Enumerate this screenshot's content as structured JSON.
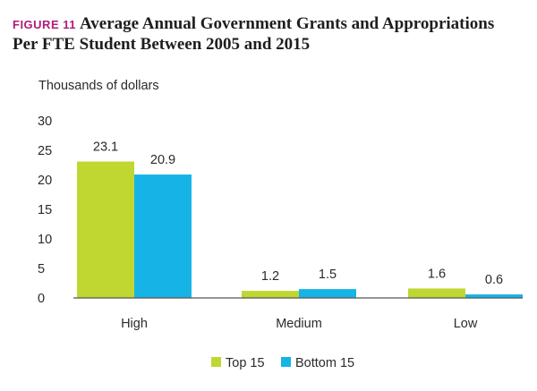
{
  "figure": {
    "label": "FIGURE 11",
    "title_line1": "Average Annual Government Grants and Appropriations",
    "title_line2": "Per FTE Student Between 2005 and 2015"
  },
  "colors": {
    "accent": "#b01c78",
    "top15": "#bfd730",
    "bottom15": "#16b4e6"
  },
  "chart_data": {
    "type": "bar",
    "title": "Average Annual Government Grants and Appropriations Per FTE Student Between 2005 and 2015",
    "ylabel": "Thousands of dollars",
    "xlabel": "",
    "categories": [
      "High",
      "Medium",
      "Low"
    ],
    "series": [
      {
        "name": "Top 15",
        "values": [
          23.1,
          1.2,
          1.6
        ],
        "labels": [
          "23.1",
          "1.2",
          "1.6"
        ]
      },
      {
        "name": "Bottom 15",
        "values": [
          20.9,
          1.5,
          0.6
        ],
        "labels": [
          "20.9",
          "1.5",
          "0.6"
        ]
      }
    ],
    "ylim": [
      0,
      30
    ],
    "yticks": [
      0,
      5,
      10,
      15,
      20,
      25,
      30
    ],
    "grid": false,
    "legend_position": "bottom"
  }
}
